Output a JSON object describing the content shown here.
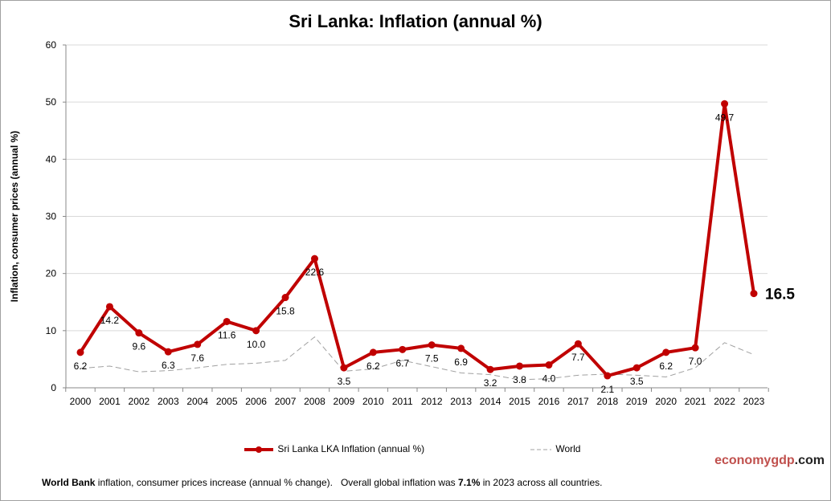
{
  "chart_data": {
    "type": "line",
    "title": "Sri Lanka: Inflation (annual %)",
    "ylabel": "Inflation, consumer prices (annual %)",
    "xlabel": "",
    "ylim": [
      0,
      60
    ],
    "yticks": [
      0,
      10,
      20,
      30,
      40,
      50,
      60
    ],
    "grid": true,
    "legend_placement": "bottom",
    "categories": [
      "2000",
      "2001",
      "2002",
      "2003",
      "2004",
      "2005",
      "2006",
      "2007",
      "2008",
      "2009",
      "2010",
      "2011",
      "2012",
      "2013",
      "2014",
      "2015",
      "2016",
      "2017",
      "2018",
      "2019",
      "2020",
      "2021",
      "2022",
      "2023"
    ],
    "series": [
      {
        "name": "Sri Lanka LKA Inflation (annual %)",
        "color": "#c00000",
        "style": "solid-markers",
        "values": [
          6.2,
          14.2,
          9.6,
          6.3,
          7.6,
          11.6,
          10.0,
          15.8,
          22.6,
          3.5,
          6.2,
          6.7,
          7.5,
          6.9,
          3.2,
          3.8,
          4.0,
          7.7,
          2.1,
          3.5,
          6.2,
          7.0,
          49.7,
          16.5
        ]
      },
      {
        "name": "World",
        "color": "#a0a0a0",
        "style": "dashed",
        "values": [
          3.4,
          3.8,
          2.8,
          3.0,
          3.5,
          4.1,
          4.3,
          4.8,
          8.9,
          2.9,
          3.3,
          4.8,
          3.7,
          2.6,
          2.3,
          1.4,
          1.6,
          2.2,
          2.4,
          2.2,
          1.9,
          3.5,
          7.9,
          5.8
        ]
      }
    ],
    "last_value_label": "16.5"
  },
  "brand": {
    "part1": "economy",
    "part2": "gdp",
    "part3": ".com"
  },
  "footer": {
    "bold1": "World Bank",
    "text1": " inflation, consumer prices increase (annual % change).   Overall global inflation was ",
    "bold2": "7.1%",
    "text2": " in 2023 across all countries."
  }
}
